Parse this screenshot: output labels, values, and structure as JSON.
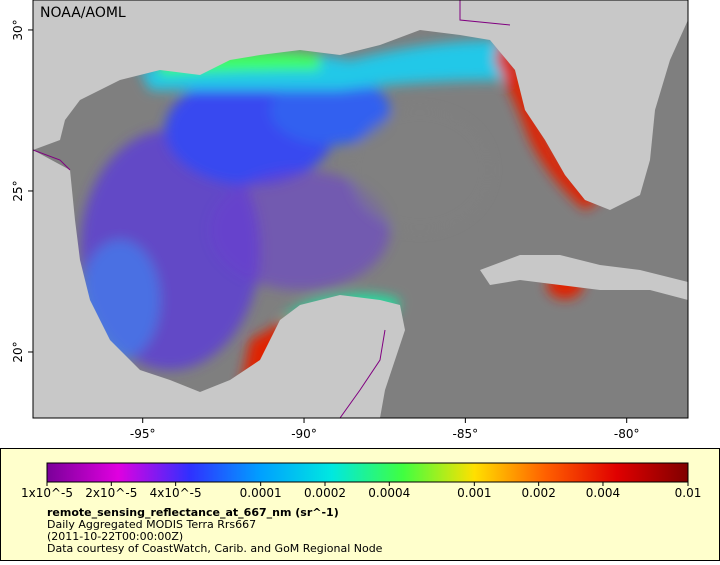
{
  "header": {
    "credit": "NOAA/AOML"
  },
  "map": {
    "xlim": [
      -98.4,
      -78.1
    ],
    "ylim": [
      17.95,
      30.93
    ],
    "xticks": [
      {
        "value": -95,
        "label": "-95°"
      },
      {
        "value": -90,
        "label": "-90°"
      },
      {
        "value": -85,
        "label": "-85°"
      },
      {
        "value": -80,
        "label": "-80°"
      }
    ],
    "yticks": [
      {
        "value": 30,
        "label": "30°"
      },
      {
        "value": 25,
        "label": "25°"
      },
      {
        "value": 20,
        "label": "20°"
      }
    ]
  },
  "colorbar": {
    "scale": "log",
    "lim": [
      1e-05,
      0.01
    ],
    "colors": [
      "#7a0099",
      "#e000e0",
      "#3030ff",
      "#00a0ff",
      "#00e8e0",
      "#40ff40",
      "#ffe000",
      "#ff6000",
      "#e00000",
      "#800000"
    ],
    "ticks": [
      {
        "value": 1e-05,
        "label": "1x10^-5"
      },
      {
        "value": 2e-05,
        "label": "2x10^-5"
      },
      {
        "value": 4e-05,
        "label": "4x10^-5"
      },
      0.0001,
      0.0002,
      0.0004,
      0.001,
      0.002,
      0.004,
      0.01
    ]
  },
  "caption": {
    "title": "remote_sensing_reflectance_at_667_nm (sr^-1)",
    "lines": [
      "Daily Aggregated MODIS Terra Rrs667",
      "(2011-10-22T00:00:00Z)",
      "Data courtesy of CoastWatch, Carib. and GoM Regional Node"
    ]
  }
}
